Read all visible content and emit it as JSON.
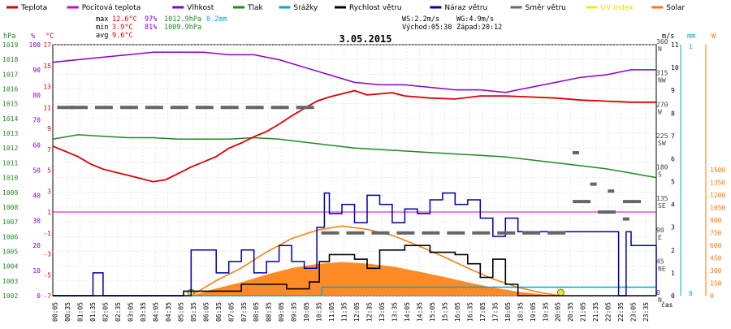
{
  "chart_data": {
    "type": "line",
    "title": "3.05.2015",
    "legend": [
      {
        "label": "Teplota",
        "color": "#dd0000"
      },
      {
        "label": "Pocitová teplota",
        "color": "#cc00cc"
      },
      {
        "label": "Vlhkost",
        "color": "#8800cc"
      },
      {
        "label": "Tlak",
        "color": "#228822"
      },
      {
        "label": "Srážky",
        "color": "#00aacc"
      },
      {
        "label": "Rychlost větru",
        "color": "#000000"
      },
      {
        "label": "Náraz větru",
        "color": "#0000aa"
      },
      {
        "label": "Směr větru",
        "color": "#666666"
      },
      {
        "label": "UV index",
        "color": "#eeee00"
      },
      {
        "label": "Solar",
        "color": "#ff7700"
      }
    ],
    "stats": {
      "max_label": "max",
      "max_temp": "12.6°C",
      "max_hum": "97%",
      "max_press": "1012.9hPa",
      "max_rain": "0.2mm",
      "min_label": "min",
      "min_temp": "3.9°C",
      "min_hum": "81%",
      "min_press": "1009.9hPa",
      "avg_label": "avg",
      "avg_temp": "9.6°C"
    },
    "wind_info": {
      "ws": "WS:2.2m/s",
      "wg": "WG:4.9m/s",
      "sunrise": "Východ:05:30",
      "sunset": "Západ:20:12"
    },
    "units": {
      "hpa": "hPa",
      "pct": "%",
      "degc": "°C",
      "ms": "m/s",
      "mm": "mm",
      "w": "W",
      "cas": "čas"
    },
    "axis_hpa": [
      "1019",
      "1018",
      "1017",
      "1016",
      "1015",
      "1014",
      "1013",
      "1012",
      "1011",
      "1010",
      "1009",
      "1008",
      "1007",
      "1006",
      "1005",
      "1004",
      "1003",
      "1002"
    ],
    "axis_pct": [
      "100",
      "90",
      "80",
      "70",
      "60",
      "50",
      "40",
      "30",
      "20",
      "10",
      "0"
    ],
    "axis_degc": [
      "17",
      "15",
      "13",
      "11",
      "9",
      "7",
      "5",
      "3",
      "1",
      "-1",
      "-3",
      "-5",
      "-7"
    ],
    "axis_dir": [
      {
        "v": "360",
        "s": "N"
      },
      {
        "v": "315",
        "s": "NW"
      },
      {
        "v": "270",
        "s": "W"
      },
      {
        "v": "225",
        "s": "SW"
      },
      {
        "v": "180",
        "s": "S"
      },
      {
        "v": "135",
        "s": "SE"
      },
      {
        "v": "90",
        "s": "E"
      },
      {
        "v": "45",
        "s": "NE"
      },
      {
        "v": "0",
        "s": "N"
      }
    ],
    "axis_ms": [
      "11",
      "10",
      "9",
      "8",
      "7",
      "6",
      "5",
      "4",
      "3",
      "2",
      "1",
      "0"
    ],
    "axis_mm": [
      "1",
      "0"
    ],
    "axis_w": [
      "1500",
      "1350",
      "1200",
      "1050",
      "900",
      "750",
      "600",
      "450",
      "300",
      "150",
      "0"
    ],
    "x_ticks": [
      "00:05",
      "00:35",
      "01:05",
      "01:35",
      "02:05",
      "02:35",
      "03:05",
      "03:35",
      "04:05",
      "04:35",
      "05:05",
      "05:35",
      "06:05",
      "06:35",
      "07:05",
      "07:35",
      "08:05",
      "08:35",
      "09:05",
      "09:35",
      "10:05",
      "10:35",
      "11:05",
      "11:35",
      "12:05",
      "12:35",
      "13:05",
      "13:35",
      "14:05",
      "14:35",
      "15:05",
      "15:35",
      "16:05",
      "16:35",
      "17:05",
      "17:35",
      "18:05",
      "18:35",
      "19:05",
      "19:35",
      "20:05",
      "20:35",
      "21:05",
      "21:35",
      "22:05",
      "22:35",
      "23:05",
      "23:35"
    ],
    "series": [
      {
        "name": "Teplota",
        "color": "#dd0000",
        "unit": "°C",
        "hours": [
          0,
          0.5,
          1,
          1.5,
          2,
          2.5,
          3,
          3.5,
          4,
          4.5,
          5,
          5.5,
          6,
          6.5,
          7,
          7.5,
          8,
          8.5,
          9,
          9.5,
          10,
          10.5,
          11,
          11.5,
          12,
          12.5,
          13,
          13.5,
          14,
          15,
          16,
          17,
          18,
          19,
          20,
          21,
          22,
          23,
          24
        ],
        "values": [
          7.3,
          6.8,
          6.3,
          5.6,
          5.1,
          4.8,
          4.5,
          4.2,
          3.9,
          4.1,
          4.7,
          5.3,
          5.8,
          6.3,
          7.1,
          7.6,
          8.2,
          8.7,
          9.4,
          10.2,
          10.9,
          11.6,
          12.0,
          12.3,
          12.6,
          12.2,
          12.3,
          12.4,
          12.1,
          11.9,
          11.8,
          12.1,
          12.1,
          12.0,
          11.9,
          11.7,
          11.6,
          11.5,
          11.5
        ]
      },
      {
        "name": "Vlhkost",
        "color": "#8800cc",
        "unit": "%",
        "hours": [
          0,
          1,
          2,
          3,
          4,
          5,
          6,
          7,
          8,
          9,
          10,
          11,
          12,
          13,
          14,
          15,
          16,
          17,
          18,
          19,
          20,
          21,
          22,
          23,
          24
        ],
        "values": [
          93,
          94,
          95,
          96,
          97,
          97,
          97,
          96,
          96,
          94,
          91,
          88,
          85,
          84,
          84,
          83,
          82,
          82,
          81,
          83,
          85,
          87,
          88,
          90,
          90
        ]
      },
      {
        "name": "Tlak",
        "color": "#228822",
        "unit": "hPa",
        "hours": [
          0,
          1,
          2,
          3,
          4,
          5,
          6,
          7,
          8,
          9,
          10,
          11,
          12,
          13,
          14,
          15,
          16,
          17,
          18,
          19,
          20,
          21,
          22,
          23,
          24
        ],
        "values": [
          1012.6,
          1012.9,
          1012.8,
          1012.7,
          1012.7,
          1012.6,
          1012.6,
          1012.6,
          1012.7,
          1012.6,
          1012.4,
          1012.2,
          1012.0,
          1011.9,
          1011.8,
          1011.7,
          1011.6,
          1011.5,
          1011.4,
          1011.2,
          1011.0,
          1010.8,
          1010.6,
          1010.3,
          1010.0
        ]
      },
      {
        "name": "Srážky",
        "color": "#00aacc",
        "unit": "mm",
        "hours": [
          0,
          10.6,
          10.7,
          24
        ],
        "values": [
          0,
          0,
          0.2,
          0.2
        ]
      },
      {
        "name": "Rychlost větru",
        "color": "#000000",
        "unit": "m/s",
        "hours": [
          0,
          5,
          5.2,
          7.5,
          9.3,
          10.2,
          10.6,
          11,
          12,
          12.5,
          13,
          14,
          15,
          16,
          16.5,
          17,
          17.5,
          18,
          18.5,
          19,
          24
        ],
        "values": [
          0,
          0,
          0.2,
          0.5,
          0.3,
          0.6,
          1.5,
          1.8,
          1.6,
          1.2,
          2.0,
          2.2,
          1.9,
          1.8,
          1.4,
          0.8,
          1.6,
          0.5,
          0,
          0,
          0
        ]
      },
      {
        "name": "Náraz větru",
        "color": "#0000aa",
        "unit": "m/s",
        "hours": [
          0,
          1.4,
          1.6,
          2,
          5,
          5.5,
          6,
          6.5,
          7,
          7.5,
          8,
          8.5,
          9,
          9.5,
          10,
          10.5,
          10.8,
          11,
          11.5,
          12,
          12.5,
          13,
          13.5,
          14,
          14.5,
          15,
          15.5,
          16,
          16.5,
          17,
          17.5,
          18,
          18.5,
          22.5,
          22.8,
          23,
          24
        ],
        "values": [
          0,
          0,
          1,
          0,
          0,
          2,
          2,
          1,
          1.5,
          2,
          1,
          1.5,
          2.2,
          1.5,
          1.2,
          3,
          4.5,
          3.6,
          4,
          3.2,
          4.4,
          4,
          3.2,
          3.8,
          3.6,
          4.2,
          4.5,
          4,
          4.2,
          3.4,
          2.6,
          3.4,
          2.8,
          0,
          2.8,
          2.2,
          0
        ]
      },
      {
        "name": "Směr větru",
        "color": "#666666",
        "unit": "°",
        "hours": [
          0.5,
          1,
          2,
          3,
          4,
          5,
          6,
          7,
          8,
          9,
          10,
          11,
          12,
          13,
          14,
          15,
          16,
          17,
          18,
          19,
          20,
          21,
          22,
          23
        ],
        "values": [
          270,
          270,
          270,
          270,
          270,
          270,
          270,
          270,
          270,
          270,
          270,
          90,
          90,
          90,
          90,
          90,
          90,
          90,
          90,
          90,
          90,
          135,
          120,
          135
        ]
      },
      {
        "name": "Solar",
        "color": "#ff7700",
        "unit": "W",
        "hours": [
          5.5,
          6.5,
          7.5,
          8.5,
          9.5,
          10.5,
          11.5,
          12.5,
          13.5,
          14.5,
          15.5,
          16.5,
          17.5,
          18.5,
          19.5,
          20.2
        ],
        "values": [
          0,
          180,
          330,
          520,
          680,
          780,
          830,
          790,
          720,
          600,
          470,
          330,
          200,
          100,
          30,
          0
        ]
      }
    ],
    "x_range": [
      0,
      24
    ],
    "grid": true
  }
}
